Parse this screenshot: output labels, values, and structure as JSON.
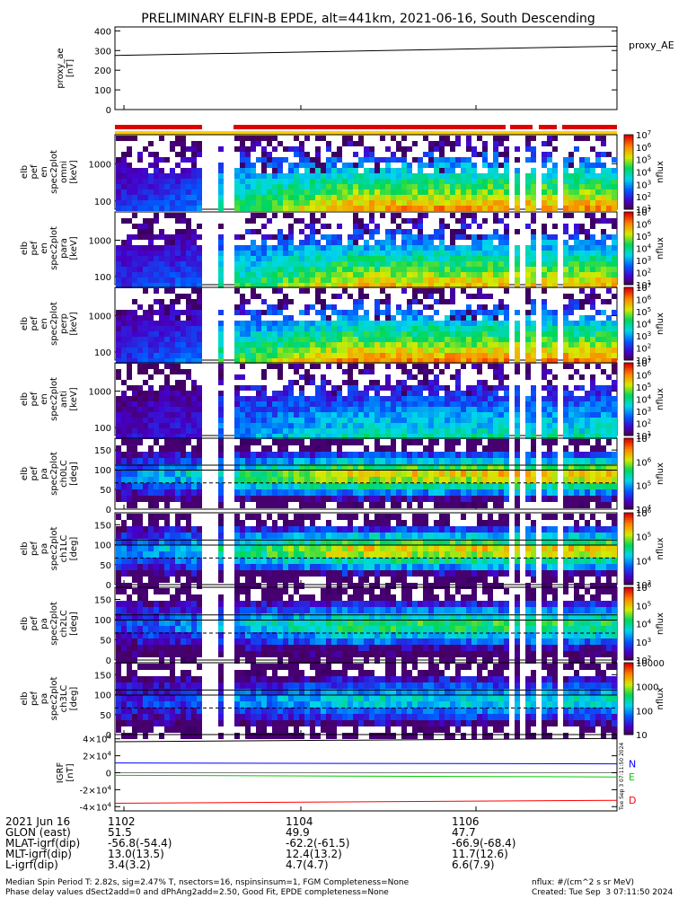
{
  "title": "PRELIMINARY ELFIN-B EPDE, alt=441km, 2021-06-16, South Descending",
  "chart_data": {
    "type": "heatmap",
    "time_ticks": [
      "1102",
      "1104",
      "1106"
    ],
    "panels": [
      {
        "id": "proxy_ae",
        "type": "line",
        "ylabel": [
          "proxy_ae",
          "[nT]"
        ],
        "legend": "proxy_AE",
        "yticks": [
          "0",
          "100",
          "200",
          "300",
          "400"
        ],
        "ylim": [
          0,
          420
        ],
        "series": [
          {
            "x": [
              0,
              1
            ],
            "y": [
              275,
              322
            ],
            "color": "#000000"
          }
        ]
      },
      {
        "id": "energy_omni",
        "type": "spectrogram",
        "ylabel": [
          "elb",
          "pef",
          "en",
          "spec2plot",
          "omni",
          "[keV]"
        ],
        "yticks": [
          "100",
          "1000"
        ],
        "zlabel": "nflux",
        "zticks": [
          "10^1",
          "10^2",
          "10^3",
          "10^4",
          "10^5",
          "10^6",
          "10^7"
        ],
        "peak_level": 0.82
      },
      {
        "id": "energy_para",
        "type": "spectrogram",
        "ylabel": [
          "elb",
          "pef",
          "en",
          "spec2plot",
          "para",
          "[keV]"
        ],
        "yticks": [
          "100",
          "1000"
        ],
        "zlabel": "nflux",
        "zticks": [
          "10^1",
          "10^2",
          "10^3",
          "10^4",
          "10^5",
          "10^6",
          "10^7"
        ],
        "peak_level": 0.75
      },
      {
        "id": "energy_perp",
        "type": "spectrogram",
        "ylabel": [
          "elb",
          "pef",
          "en",
          "spec2plot",
          "perp",
          "[keV]"
        ],
        "yticks": [
          "100",
          "1000"
        ],
        "zlabel": "nflux",
        "zticks": [
          "10^1",
          "10^2",
          "10^3",
          "10^4",
          "10^5",
          "10^6",
          "10^7"
        ],
        "peak_level": 0.82
      },
      {
        "id": "energy_anti",
        "type": "spectrogram",
        "ylabel": [
          "elb",
          "pef",
          "en",
          "spec2plot",
          "anti",
          "[keV]"
        ],
        "yticks": [
          "100",
          "1000"
        ],
        "zlabel": "nflux",
        "zticks": [
          "10^1",
          "10^2",
          "10^3",
          "10^4",
          "10^5",
          "10^6",
          "10^7"
        ],
        "peak_level": 0.45
      },
      {
        "id": "pa_ch0",
        "type": "spectrogram",
        "ylabel": [
          "elb",
          "pef",
          "pa",
          "spec2plot",
          "ch0LC",
          "[deg]"
        ],
        "yticks": [
          "0",
          "50",
          "100",
          "150"
        ],
        "zlabel": "nflux",
        "zticks": [
          "10^4",
          "10^5",
          "10^6",
          "10^7"
        ],
        "peak_level": 0.8
      },
      {
        "id": "pa_ch1",
        "type": "spectrogram",
        "ylabel": [
          "elb",
          "pef",
          "pa",
          "spec2plot",
          "ch1LC",
          "[deg]"
        ],
        "yticks": [
          "0",
          "50",
          "100",
          "150"
        ],
        "zlabel": "nflux",
        "zticks": [
          "10^3",
          "10^4",
          "10^5",
          "10^6"
        ],
        "peak_level": 0.8
      },
      {
        "id": "pa_ch2",
        "type": "spectrogram",
        "ylabel": [
          "elb",
          "pef",
          "pa",
          "spec2plot",
          "ch2LC",
          "[deg]"
        ],
        "yticks": [
          "0",
          "50",
          "100",
          "150"
        ],
        "zlabel": "nflux",
        "zticks": [
          "10^2",
          "10^3",
          "10^4",
          "10^5",
          "10^6"
        ],
        "peak_level": 0.6
      },
      {
        "id": "pa_ch3",
        "type": "spectrogram",
        "ylabel": [
          "elb",
          "pef",
          "pa",
          "spec2plot",
          "ch3LC",
          "[deg]"
        ],
        "yticks": [
          "0",
          "50",
          "100",
          "150"
        ],
        "zlabel": "nflux",
        "zticks": [
          "10",
          "100",
          "1000",
          "10000"
        ],
        "peak_level": 0.45
      },
      {
        "id": "igrf",
        "type": "line",
        "ylabel": [
          "IGRF",
          "[nT]"
        ],
        "yticks": [
          "-4×10^4",
          "-2×10^4",
          "0",
          "2×10^4",
          "4×10^4"
        ],
        "ylim": [
          -45000,
          45000
        ],
        "series": [
          {
            "name": "N",
            "x": [
              0,
              1
            ],
            "y": [
              11500,
              10500
            ],
            "color": "#0000ff"
          },
          {
            "name": "E",
            "x": [
              0,
              1
            ],
            "y": [
              -3000,
              -5000
            ],
            "color": "#00cc00"
          },
          {
            "name": "D",
            "x": [
              0,
              1
            ],
            "y": [
              -36000,
              -32500
            ],
            "color": "#ff0000"
          },
          {
            "name": "",
            "x": [
              0,
              1
            ],
            "y": [
              36500,
              40500
            ],
            "color": "#000000"
          }
        ]
      }
    ]
  },
  "side_stamp": "Tue Sep  3 07:11:50 2024",
  "orbit_table": [
    {
      "label": "2021 Jun 16",
      "v1": "1102",
      "v2": "1104",
      "v3": "1106"
    },
    {
      "label": "GLON (east)",
      "v1": "51.5",
      "v2": "49.9",
      "v3": "47.7"
    },
    {
      "label": "MLAT-igrf(dip)",
      "v1": "-56.8(-54.4)",
      "v2": "-62.2(-61.5)",
      "v3": "-66.9(-68.4)"
    },
    {
      "label": "MLT-igrf(dip)",
      "v1": "13.0(13.5)",
      "v2": "12.4(13.2)",
      "v3": "11.7(12.6)"
    },
    {
      "label": "L-igrf(dip)",
      "v1": "3.4(3.2)",
      "v2": "4.7(4.7)",
      "v3": "6.6(7.9)"
    }
  ],
  "footer": {
    "line1": "Median Spin Period T: 2.82s, sig=2.47% T, nsectors=16, nspinsinsum=1, FGM Completeness=None",
    "line2": "Phase delay values dSect2add=0 and dPhAng2add=2.50, Good Fit, EPDE completeness=None",
    "units": "nflux: #/(cm^2 s sr MeV)",
    "created": "Created: Tue Sep  3 07:11:50 2024"
  }
}
